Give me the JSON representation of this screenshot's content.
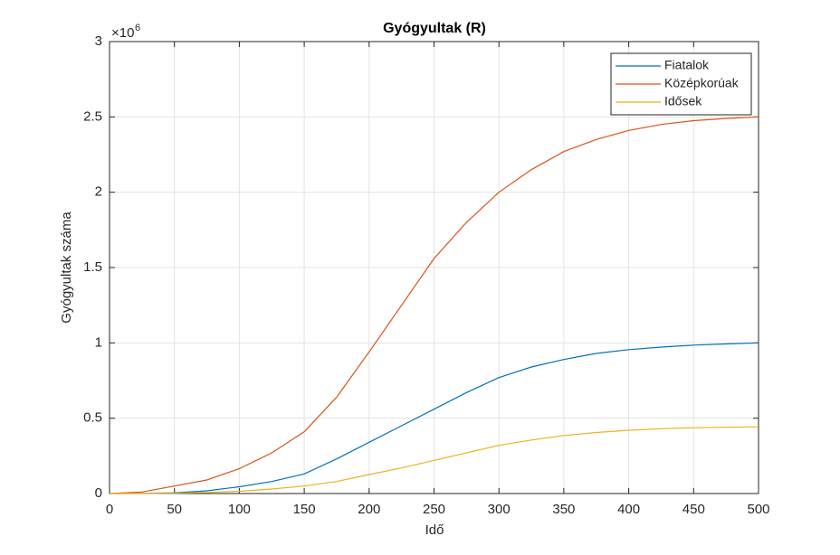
{
  "chart_data": {
    "type": "line",
    "title": "Gyógyultak (R)",
    "x_label": "Idő",
    "y_label": "Gyógyultak száma",
    "y_exponent_base": "×10",
    "y_exponent": "6",
    "x": [
      0,
      25,
      50,
      75,
      100,
      125,
      150,
      175,
      200,
      225,
      250,
      275,
      300,
      325,
      350,
      375,
      400,
      425,
      450,
      475,
      500
    ],
    "series": [
      {
        "name": "Fiatalok",
        "color": "#0072bd",
        "values": [
          0,
          0.001,
          0.005,
          0.018,
          0.045,
          0.08,
          0.13,
          0.23,
          0.34,
          0.45,
          0.56,
          0.67,
          0.77,
          0.84,
          0.89,
          0.93,
          0.955,
          0.972,
          0.985,
          0.993,
          1.0
        ]
      },
      {
        "name": "Középkorúak",
        "color": "#d95319",
        "values": [
          0,
          0.01,
          0.05,
          0.09,
          0.165,
          0.27,
          0.41,
          0.64,
          0.94,
          1.25,
          1.56,
          1.8,
          2.0,
          2.15,
          2.27,
          2.35,
          2.41,
          2.45,
          2.475,
          2.49,
          2.5
        ]
      },
      {
        "name": "Idősek",
        "color": "#edb120",
        "values": [
          0,
          0,
          0.002,
          0.007,
          0.015,
          0.03,
          0.05,
          0.08,
          0.126,
          0.17,
          0.22,
          0.27,
          0.32,
          0.355,
          0.385,
          0.405,
          0.42,
          0.43,
          0.437,
          0.44,
          0.443
        ]
      }
    ],
    "xlim": [
      0,
      500
    ],
    "xticks": [
      0,
      50,
      100,
      150,
      200,
      250,
      300,
      350,
      400,
      450,
      500
    ],
    "ylim": [
      0,
      3
    ],
    "yticks": [
      0,
      0.5,
      1,
      1.5,
      2,
      2.5,
      3
    ],
    "grid": true,
    "legend_position": "northeast"
  }
}
